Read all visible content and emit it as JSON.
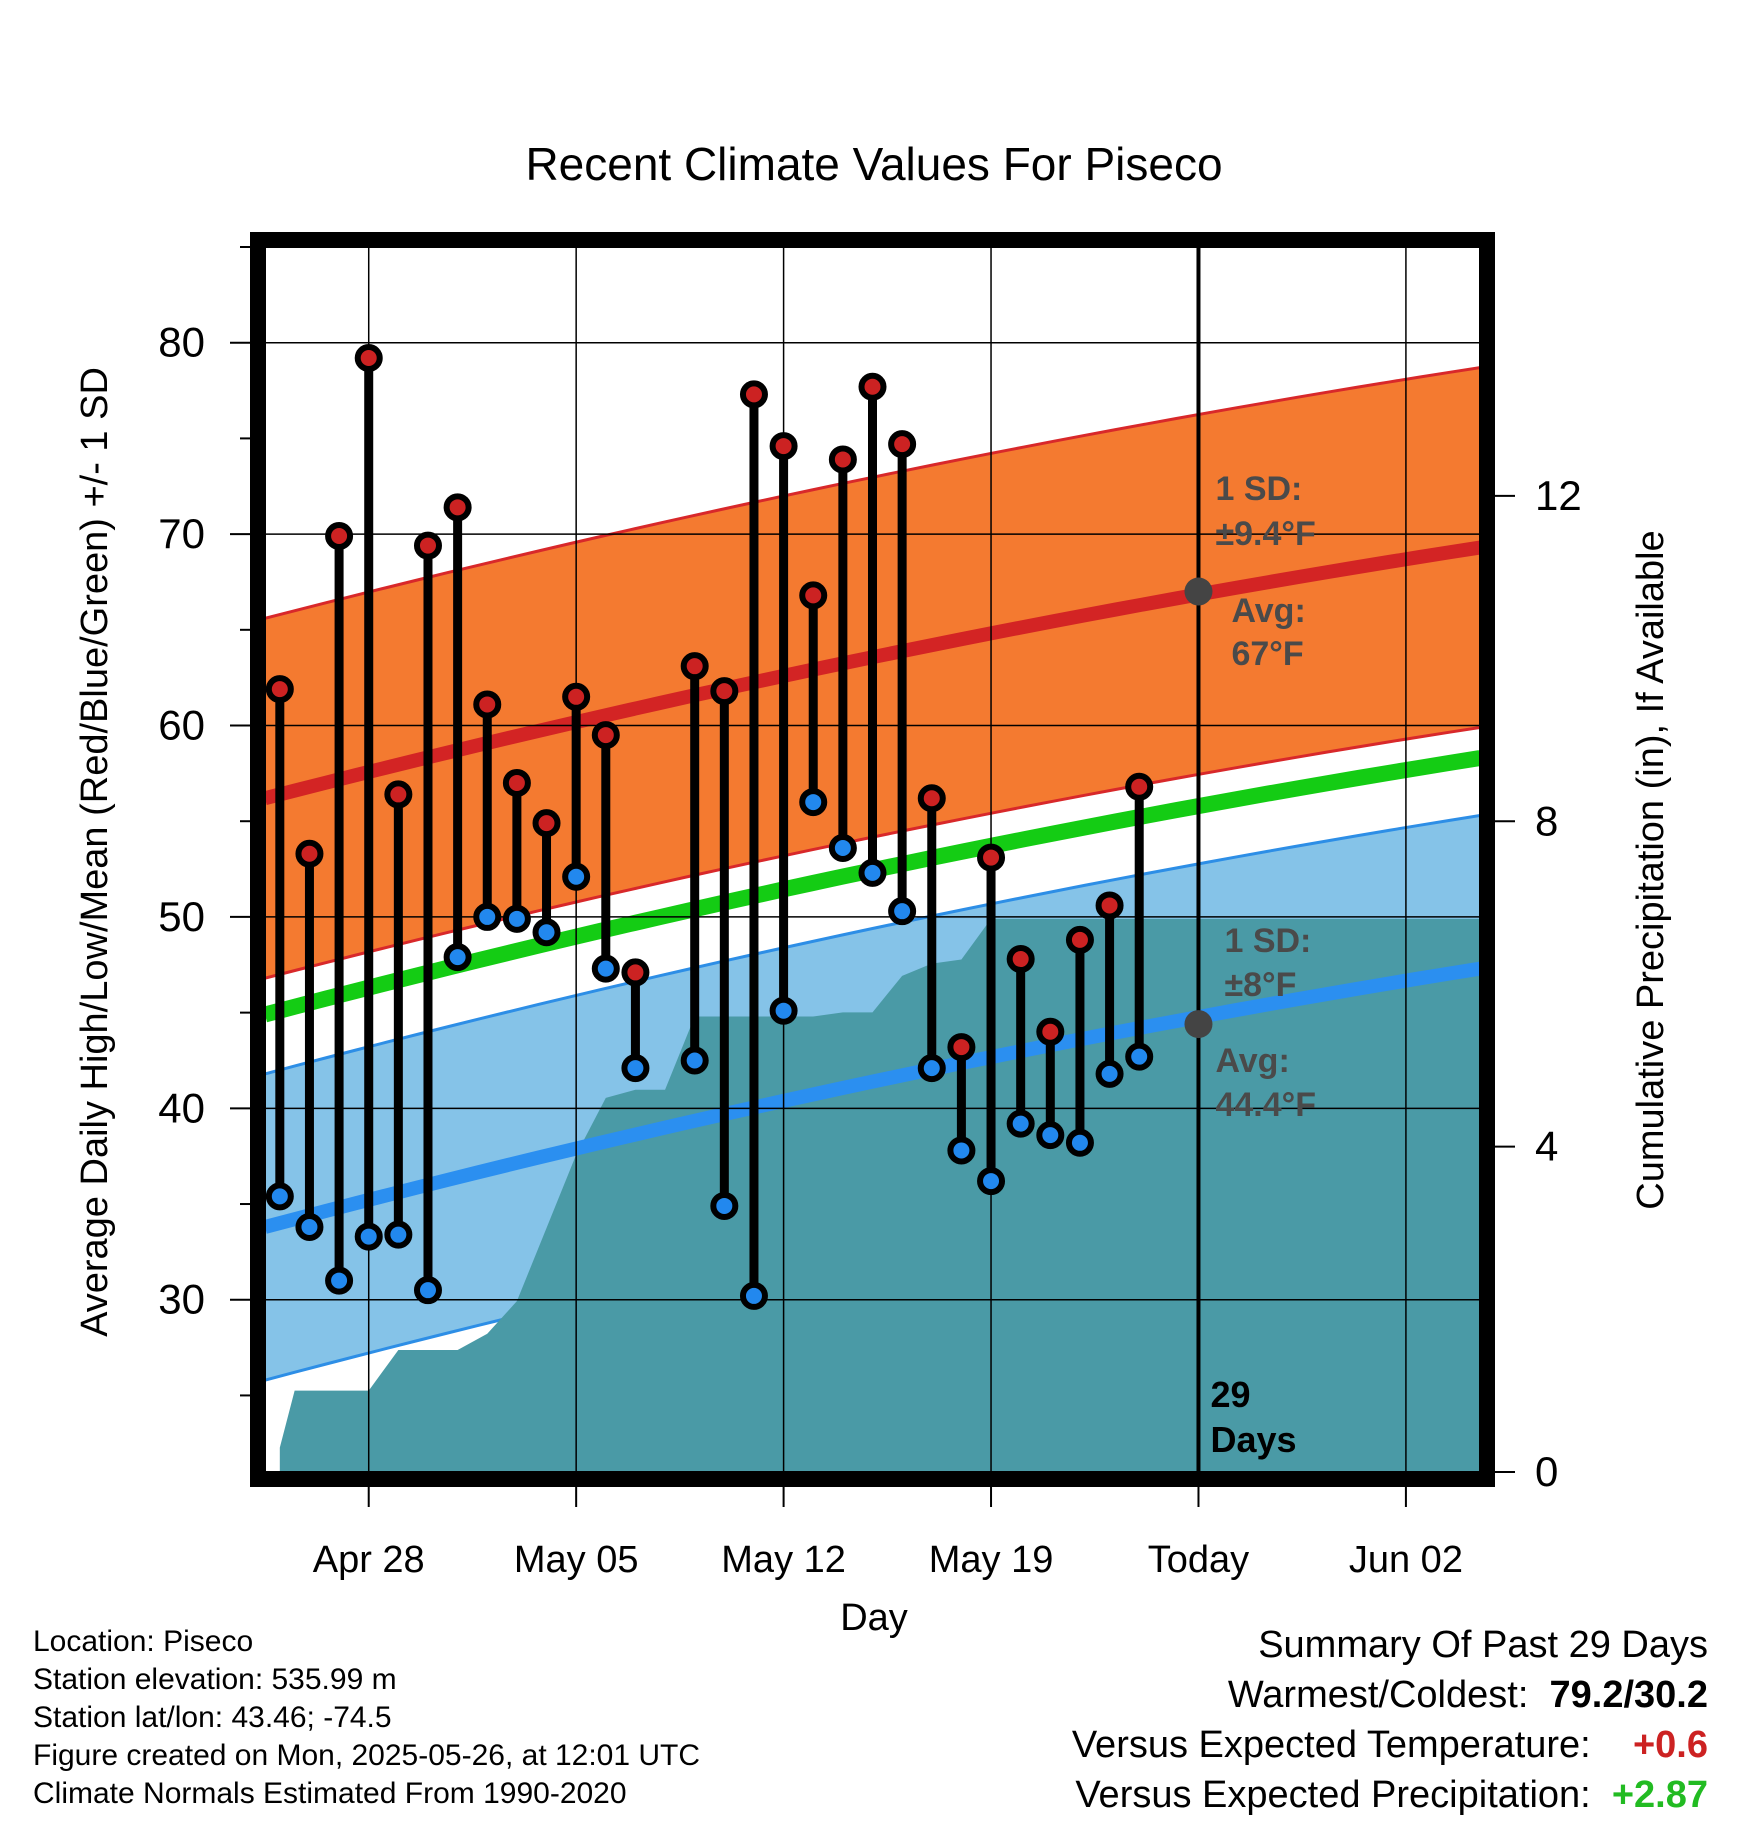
{
  "chart_data": {
    "type": "line",
    "title": "Recent Climate Values For Piseco",
    "xlabel": "Day",
    "ylabel": "Average Daily High/Low/Mean (Red/Blue/Green) +/- 1 SD",
    "y2label": "Cumulative Precipitation (in), If Available",
    "x_tick_labels": [
      "Apr 28",
      "May 05",
      "May 12",
      "May 19",
      "Today",
      "Jun 02"
    ],
    "x_tick_days": [
      3,
      10,
      17,
      24,
      31,
      38
    ],
    "x_range_days": [
      -0.5,
      40.5
    ],
    "x_day0": "Apr 25",
    "ylim": [
      21,
      85
    ],
    "y_ticks": [
      30,
      40,
      50,
      60,
      70,
      80
    ],
    "y2lim": [
      0,
      15.06
    ],
    "y2_ticks": [
      0,
      4,
      8,
      12
    ],
    "grid": true,
    "today_marker": {
      "day": 31,
      "label_line1": "29",
      "label_line2": "Days"
    },
    "normal_high": {
      "start": 56.2,
      "end": 69.3,
      "sd": 9.4,
      "sd_label_1": "1 SD:",
      "sd_label_2": "±9.4°F",
      "avg_label_1": "Avg:",
      "avg_label_2": "67°F",
      "avg_today": 67.0
    },
    "normal_low": {
      "start": 33.8,
      "end": 47.3,
      "sd": 8.0,
      "sd_label_1": "1 SD:",
      "sd_label_2": "±8°F",
      "avg_label_1": "Avg:",
      "avg_label_2": "44.4°F",
      "avg_today": 44.4
    },
    "normal_mean": {
      "start": 44.9,
      "end": 58.3
    },
    "series": [
      {
        "name": "Daily High",
        "color": "#cc2222",
        "days": [
          0,
          1,
          2,
          3,
          4,
          5,
          6,
          7,
          8,
          9,
          10,
          11,
          12,
          14,
          15,
          16,
          17,
          18,
          19,
          20,
          21,
          22,
          23,
          24,
          25,
          26,
          27,
          28,
          29
        ],
        "values": [
          61.9,
          53.3,
          69.9,
          79.2,
          56.4,
          69.4,
          71.4,
          61.1,
          57.0,
          54.9,
          61.5,
          59.5,
          47.1,
          63.1,
          61.8,
          77.3,
          74.6,
          66.8,
          73.9,
          77.7,
          74.7,
          56.2,
          43.2,
          53.1,
          47.8,
          44.0,
          48.8,
          50.6,
          56.8
        ]
      },
      {
        "name": "Daily Low",
        "color": "#2288ee",
        "days": [
          0,
          1,
          2,
          3,
          4,
          5,
          6,
          7,
          8,
          9,
          10,
          11,
          12,
          14,
          15,
          16,
          17,
          18,
          19,
          20,
          21,
          22,
          23,
          24,
          25,
          26,
          27,
          28,
          29
        ],
        "values": [
          35.4,
          33.8,
          31.0,
          33.3,
          33.4,
          30.5,
          47.9,
          50.0,
          49.9,
          49.2,
          52.1,
          47.3,
          42.1,
          42.5,
          34.9,
          30.2,
          45.1,
          56.0,
          53.6,
          52.3,
          50.3,
          42.1,
          37.8,
          36.2,
          39.2,
          38.6,
          38.2,
          41.8,
          42.7
        ]
      },
      {
        "name": "Cumulative Precipitation",
        "color": "#4a9aa6",
        "days": [
          0,
          0.5,
          1,
          2,
          3,
          4,
          5,
          6,
          7,
          8,
          9,
          10,
          11,
          12,
          13,
          14,
          15,
          16,
          17,
          18,
          19,
          20,
          21,
          22,
          23,
          24,
          25,
          26,
          27,
          28,
          29,
          40.5
        ],
        "values": [
          0.3,
          1.0,
          1.0,
          1.0,
          1.0,
          1.5,
          1.5,
          1.5,
          1.7,
          2.1,
          3.0,
          3.9,
          4.6,
          4.7,
          4.7,
          5.6,
          5.6,
          5.6,
          5.6,
          5.6,
          5.65,
          5.65,
          6.1,
          6.25,
          6.3,
          6.8,
          6.8,
          6.8,
          6.8,
          6.8,
          6.8,
          6.8
        ]
      }
    ]
  },
  "info": {
    "location": "Location: Piseco",
    "elevation": "Station elevation: 535.99 m",
    "latlon": "Station lat/lon: 43.46; -74.5",
    "created": "Figure created on Mon, 2025-05-26, at 12:01 UTC",
    "normals": "Climate Normals Estimated From 1990-2020"
  },
  "summary": {
    "title": "Summary Of Past 29 Days",
    "warm_label": "Warmest/Coldest:",
    "warm_value": "79.2/30.2",
    "temp_label": "Versus Expected Temperature:",
    "temp_value": "+0.6",
    "temp_color": "#cc2222",
    "precip_label": "Versus Expected Precipitation:",
    "precip_value": "+2.87",
    "precip_color": "#22bb22"
  }
}
